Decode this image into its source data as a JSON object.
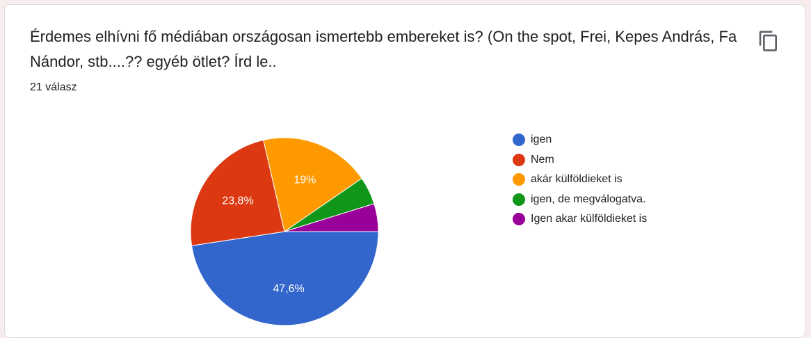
{
  "question": {
    "title": "Érdemes elhívni fő médiában országosan ismertebb embereket is? (On the spot, Frei, Kepes András, Fa Nándor, stb....?? egyéb ötlet? Írd le..",
    "response_count": "21 válasz"
  },
  "icons": {
    "copy": "copy-icon"
  },
  "chart_data": {
    "type": "pie",
    "title": "",
    "slices": [
      {
        "label": "igen",
        "value": 47.6,
        "display": "47,6%",
        "color": "#3366cc"
      },
      {
        "label": "Nem",
        "value": 23.8,
        "display": "23,8%",
        "color": "#dc3912"
      },
      {
        "label": "akár külföldieket is",
        "value": 19.0,
        "display": "19%",
        "color": "#ff9900"
      },
      {
        "label": "igen, de megválogatva.",
        "value": 4.8,
        "display": "",
        "color": "#109618"
      },
      {
        "label": "Igen akar külföldieket is",
        "value": 4.8,
        "display": "",
        "color": "#990099"
      }
    ],
    "legend_position": "right"
  }
}
